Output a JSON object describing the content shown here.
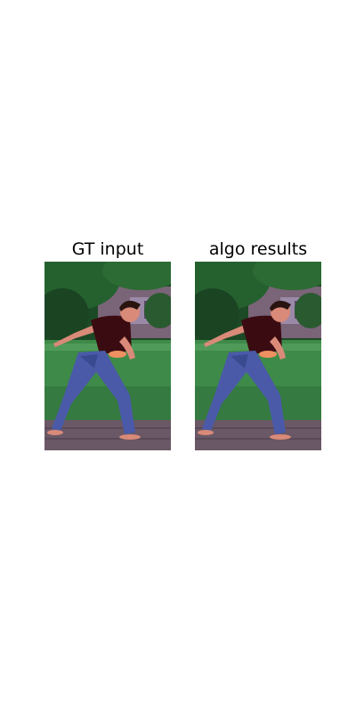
{
  "panels": [
    {
      "title": "GT input",
      "scene": "boy-throwing-frisbee-on-lawn"
    },
    {
      "title": "algo results",
      "scene": "boy-throwing-frisbee-on-lawn"
    }
  ],
  "colors": {
    "sky_trees": "#1f5a2b",
    "building": "#8a6f88",
    "lawn": "#3f8a4a",
    "path": "#6d5a66",
    "shirt": "#3a0c12",
    "jeans": "#4a5aa8",
    "skin": "#d98a78",
    "hair": "#2a1410",
    "frisbee": "#f09060"
  }
}
